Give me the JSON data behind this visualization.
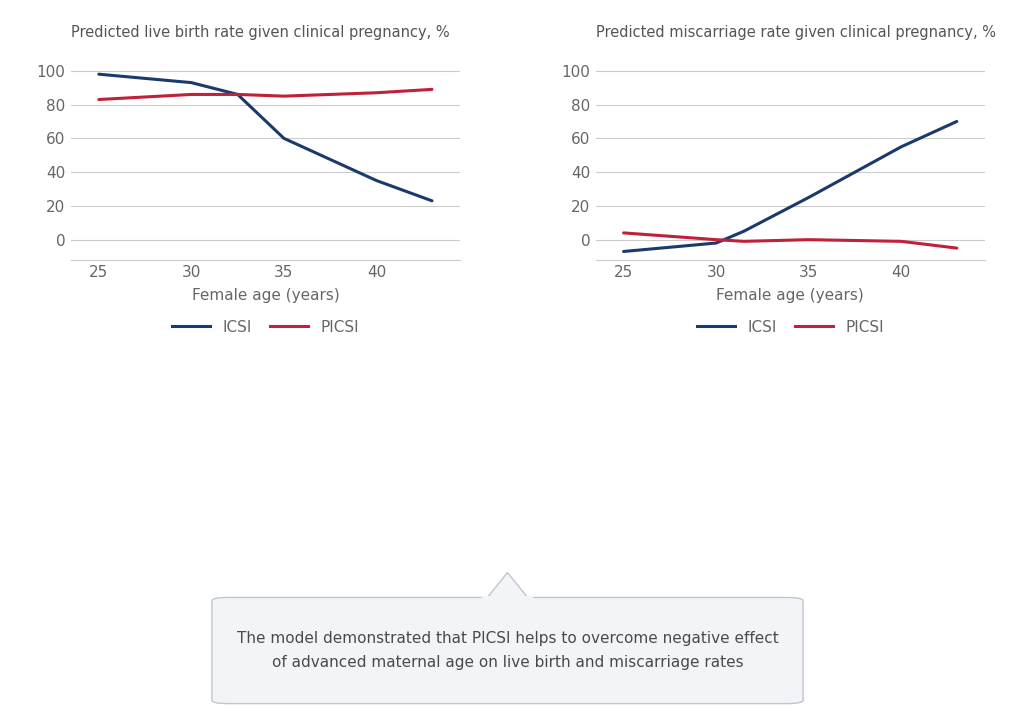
{
  "left_title": "Predicted live birth rate given clinical pregnancy, %",
  "right_title": "Predicted miscarriage rate given clinical pregnancy, %",
  "xlabel": "Female age (years)",
  "icsi_color": "#1a3a6b",
  "picsi_color": "#c0203a",
  "left_x": [
    25,
    30,
    32.5,
    35,
    40,
    43
  ],
  "left_icsi_y": [
    98,
    93,
    86,
    60,
    35,
    23
  ],
  "left_picsi_y": [
    83,
    86,
    86,
    85,
    87,
    89
  ],
  "right_x": [
    25,
    30,
    31.5,
    35,
    40,
    43
  ],
  "right_icsi_y": [
    -7,
    -2,
    5,
    25,
    55,
    70
  ],
  "right_picsi_y": [
    4,
    0,
    -1,
    0,
    -1,
    -5
  ],
  "left_ylim": [
    -12,
    112
  ],
  "right_ylim": [
    -12,
    112
  ],
  "left_yticks": [
    0,
    20,
    40,
    60,
    80,
    100
  ],
  "right_yticks": [
    0,
    20,
    40,
    60,
    80,
    100
  ],
  "xticks": [
    25,
    30,
    35,
    40
  ],
  "xlim": [
    23.5,
    44.5
  ],
  "legend_icsi": "ICSI",
  "legend_picsi": "PICSI",
  "annotation_text": "The model demonstrated that PICSI helps to overcome negative effect\nof advanced maternal age on live birth and miscarriage rates",
  "bg_color": "#ffffff",
  "grid_color": "#cccccc",
  "tick_color": "#666666",
  "title_color": "#555555",
  "line_width": 2.2
}
